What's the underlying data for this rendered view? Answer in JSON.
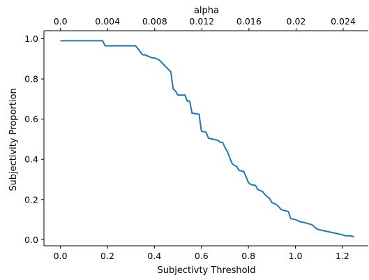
{
  "chart_data": {
    "type": "line",
    "xlabel": "Subjectivty Threshold",
    "ylabel": "Subjectivity Proportion",
    "top_xlabel": "alpha",
    "xlim": [
      -0.07,
      1.31
    ],
    "ylim": [
      -0.03,
      1.04
    ],
    "xticks": [
      0.0,
      0.2,
      0.4,
      0.6,
      0.8,
      1.0,
      1.2
    ],
    "xtick_labels": [
      "0.0",
      "0.2",
      "0.4",
      "0.6",
      "0.8",
      "1.0",
      "1.2"
    ],
    "yticks": [
      0.0,
      0.2,
      0.4,
      0.6,
      0.8,
      1.0
    ],
    "ytick_labels": [
      "0.0",
      "0.2",
      "0.4",
      "0.6",
      "0.8",
      "1.0"
    ],
    "top_xlim": [
      -0.0014,
      0.02613
    ],
    "top_xticks": [
      0.0,
      0.004,
      0.008,
      0.012,
      0.016,
      0.02,
      0.024
    ],
    "top_xtick_labels": [
      "0.0",
      "0.004",
      "0.008",
      "0.012",
      "0.016",
      "0.02",
      "0.024"
    ],
    "grid": false,
    "line_color": "#1f77b4",
    "series": [
      {
        "x": [
          0.0,
          0.18,
          0.19,
          0.32,
          0.35,
          0.36,
          0.39,
          0.4,
          0.42,
          0.47,
          0.48,
          0.49,
          0.5,
          0.53,
          0.54,
          0.55,
          0.56,
          0.59,
          0.6,
          0.62,
          0.63,
          0.67,
          0.68,
          0.69,
          0.7,
          0.71,
          0.72,
          0.73,
          0.74,
          0.75,
          0.76,
          0.78,
          0.8,
          0.81,
          0.83,
          0.84,
          0.86,
          0.87,
          0.89,
          0.9,
          0.92,
          0.94,
          0.97,
          0.98,
          1.0,
          1.02,
          1.04,
          1.07,
          1.08,
          1.09,
          1.1,
          1.12,
          1.14,
          1.16,
          1.18,
          1.2,
          1.21,
          1.23,
          1.25
        ],
        "y": [
          0.99,
          0.99,
          0.965,
          0.965,
          0.92,
          0.92,
          0.905,
          0.905,
          0.895,
          0.835,
          0.75,
          0.74,
          0.72,
          0.72,
          0.69,
          0.69,
          0.63,
          0.625,
          0.54,
          0.535,
          0.505,
          0.495,
          0.485,
          0.485,
          0.46,
          0.44,
          0.41,
          0.38,
          0.37,
          0.365,
          0.345,
          0.34,
          0.285,
          0.275,
          0.27,
          0.25,
          0.24,
          0.225,
          0.205,
          0.185,
          0.175,
          0.15,
          0.14,
          0.105,
          0.1,
          0.09,
          0.085,
          0.075,
          0.065,
          0.055,
          0.05,
          0.045,
          0.04,
          0.035,
          0.03,
          0.025,
          0.02,
          0.02,
          0.015
        ]
      }
    ]
  }
}
